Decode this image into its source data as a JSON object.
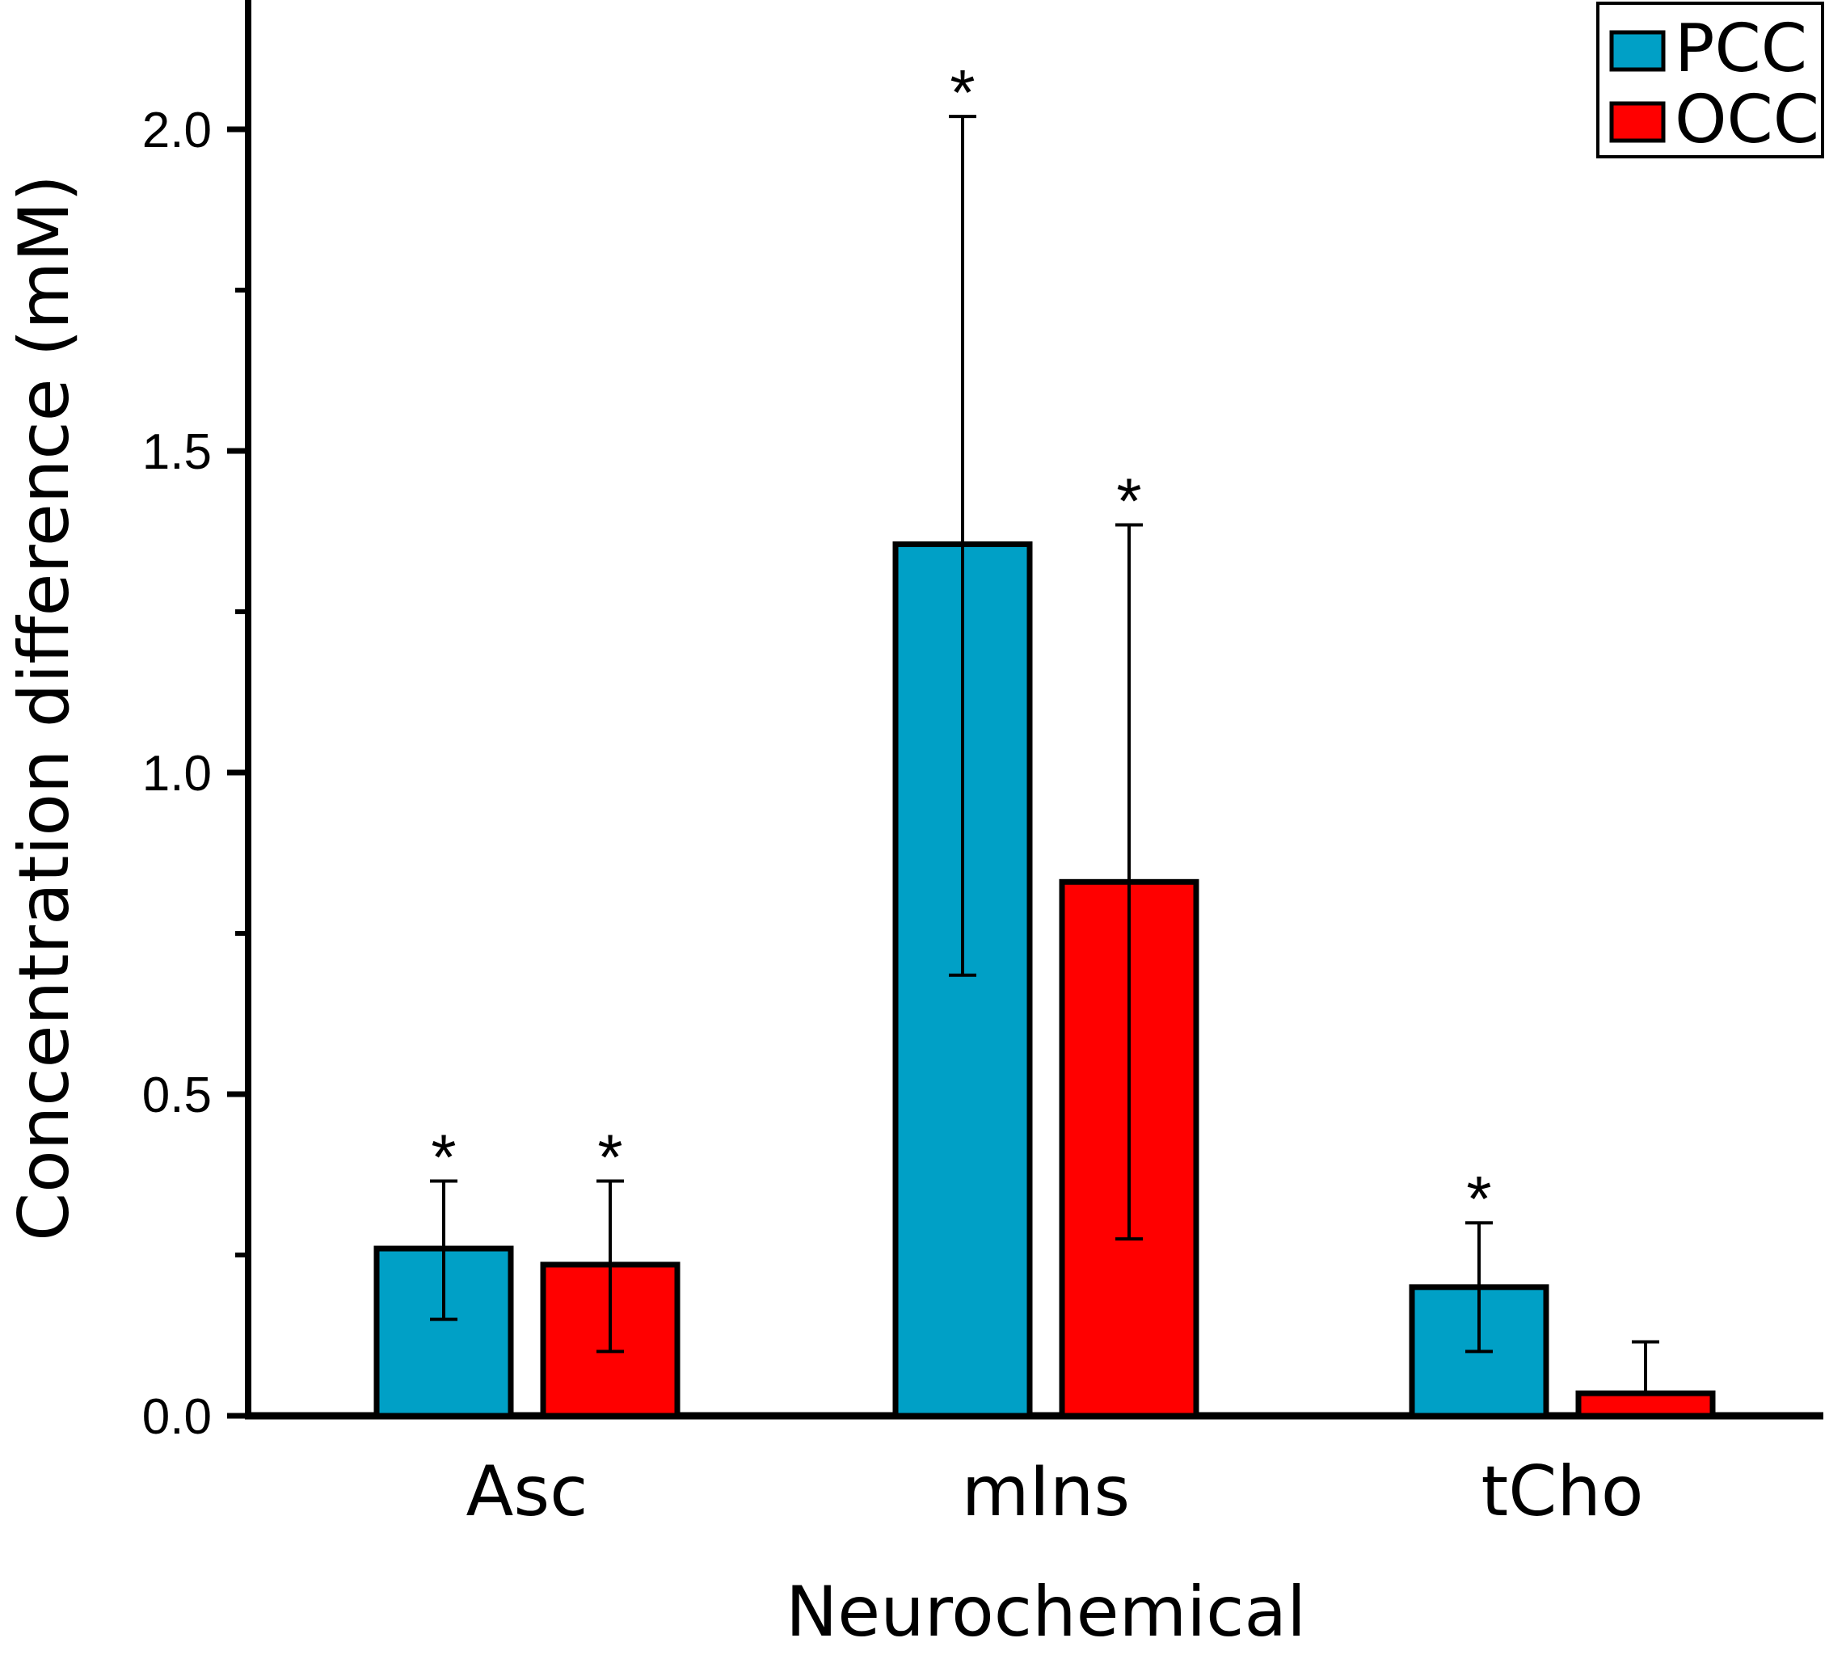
{
  "chart_data": {
    "type": "bar",
    "title": "",
    "xlabel": "Neurochemical",
    "ylabel": "Concentration difference (mM)",
    "ylim": [
      0,
      2.2
    ],
    "yticks": [
      "0.0",
      "0.5",
      "1.0",
      "1.5",
      "2.0"
    ],
    "ytick_values": [
      0,
      0.5,
      1.0,
      1.5,
      2.0
    ],
    "minor_ytick_values": [
      0.25,
      0.75,
      1.25,
      1.75
    ],
    "categories": [
      "Asc",
      "mIns",
      "tCho"
    ],
    "series": [
      {
        "name": "PCC",
        "color": "#00a0c6",
        "values": [
          0.26,
          1.355,
          0.2
        ],
        "err_low": [
          0.15,
          0.685,
          0.1
        ],
        "err_high": [
          0.365,
          2.02,
          0.3
        ],
        "significant": [
          "*",
          "*",
          "*"
        ]
      },
      {
        "name": "OCC",
        "color": "#ff0000",
        "values": [
          0.235,
          0.83,
          0.035
        ],
        "err_low": [
          0.1,
          0.275,
          0.035
        ],
        "err_high": [
          0.365,
          1.385,
          0.115
        ],
        "significant": [
          "*",
          "*",
          ""
        ]
      }
    ],
    "legend": {
      "position": "top-right",
      "entries": [
        "PCC",
        "OCC"
      ]
    },
    "grid": false
  }
}
